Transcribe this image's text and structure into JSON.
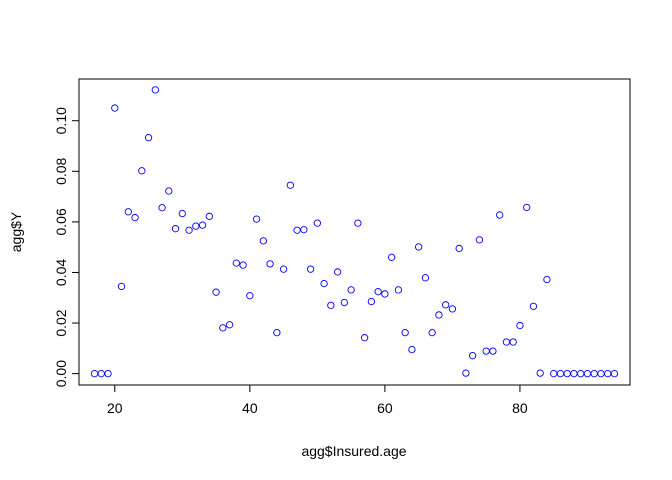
{
  "chart_data": {
    "type": "scatter",
    "xlabel": "agg$Insured.age",
    "ylabel": "agg$Y",
    "xlim": [
      14.7,
      96.3
    ],
    "ylim": [
      -0.0045,
      0.1165
    ],
    "x_ticks": [
      20,
      40,
      60,
      80
    ],
    "y_ticks": [
      0.0,
      0.02,
      0.04,
      0.06,
      0.08,
      0.1
    ],
    "y_tick_labels": [
      "0.00",
      "0.02",
      "0.04",
      "0.06",
      "0.08",
      "0.10"
    ],
    "x_tick_labels": [
      "20",
      "40",
      "60",
      "80"
    ],
    "marker": "open-circle",
    "marker_color": "#0000FF",
    "grid": false,
    "series": [
      {
        "x": [
          17,
          18,
          19,
          20,
          21,
          22,
          23,
          24,
          25,
          26,
          27,
          28,
          29,
          30,
          31,
          32,
          33,
          34,
          35,
          36,
          37,
          38,
          39,
          40,
          41,
          42,
          43,
          44,
          45,
          46,
          47,
          48,
          49,
          50,
          51,
          52,
          53,
          54,
          55,
          56,
          57,
          58,
          59,
          60,
          61,
          62,
          63,
          64,
          65,
          66,
          67,
          68,
          69,
          70,
          71,
          72,
          73,
          74,
          75,
          76,
          77,
          78,
          79,
          80,
          81,
          82,
          83,
          84,
          85,
          86,
          87,
          88,
          89,
          90,
          91,
          92,
          93,
          94
        ],
        "y": [
          0.0,
          0.0,
          0.0,
          0.105,
          0.0345,
          0.064,
          0.0617,
          0.0802,
          0.0933,
          0.1122,
          0.0656,
          0.0722,
          0.0573,
          0.0633,
          0.0567,
          0.0583,
          0.0587,
          0.0622,
          0.0322,
          0.0181,
          0.0193,
          0.0437,
          0.0429,
          0.0308,
          0.0611,
          0.0525,
          0.0434,
          0.0162,
          0.0413,
          0.0745,
          0.0567,
          0.0569,
          0.0413,
          0.0595,
          0.0356,
          0.027,
          0.0402,
          0.0281,
          0.0331,
          0.0595,
          0.0142,
          0.0285,
          0.0324,
          0.0315,
          0.046,
          0.0331,
          0.0162,
          0.0095,
          0.0501,
          0.0379,
          0.0162,
          0.0232,
          0.0272,
          0.0256,
          0.0495,
          0.0002,
          0.0071,
          0.0529,
          0.0089,
          0.0089,
          0.0627,
          0.0125,
          0.0125,
          0.019,
          0.0657,
          0.0266,
          0.0002,
          0.0372,
          0.0,
          0.0,
          0.0,
          0.0,
          0.0,
          0.0,
          0.0,
          0.0,
          0.0,
          0.0
        ]
      }
    ]
  }
}
